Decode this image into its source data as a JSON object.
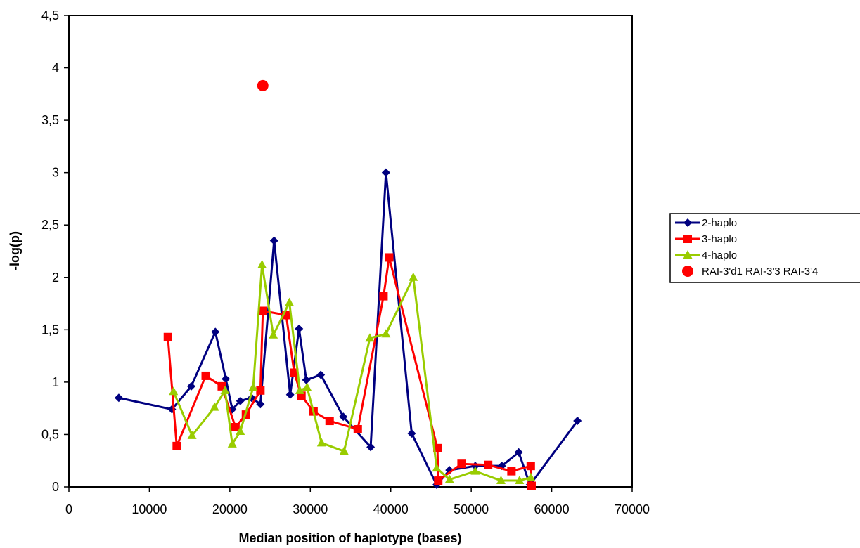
{
  "chart_data": {
    "type": "line",
    "title": "",
    "xlabel": "Median position of haplotype (bases)",
    "ylabel": "-log(p)",
    "xlim": [
      0,
      70000
    ],
    "ylim": [
      0,
      4.5
    ],
    "x_ticks": [
      0,
      10000,
      20000,
      30000,
      40000,
      50000,
      60000,
      70000
    ],
    "x_tick_labels": [
      "0",
      "10000",
      "20000",
      "30000",
      "40000",
      "50000",
      "60000",
      "70000"
    ],
    "y_ticks": [
      0,
      0.5,
      1,
      1.5,
      2,
      2.5,
      3,
      3.5,
      4,
      4.5
    ],
    "y_tick_labels": [
      "0",
      "0,5",
      "1",
      "1,5",
      "2",
      "2,5",
      "3",
      "3,5",
      "4",
      "4,5"
    ],
    "grid": false,
    "legend_position": "right",
    "series": [
      {
        "name": "2-haplo",
        "color": "#000080",
        "marker": "diamond",
        "line": true,
        "points": [
          [
            6200,
            0.85
          ],
          [
            12800,
            0.74
          ],
          [
            15200,
            0.96
          ],
          [
            18200,
            1.48
          ],
          [
            19500,
            1.03
          ],
          [
            20300,
            0.74
          ],
          [
            21300,
            0.82
          ],
          [
            22700,
            0.85
          ],
          [
            23800,
            0.79
          ],
          [
            25500,
            2.35
          ],
          [
            27500,
            0.88
          ],
          [
            28600,
            1.51
          ],
          [
            29500,
            1.02
          ],
          [
            31300,
            1.07
          ],
          [
            34100,
            0.67
          ],
          [
            37500,
            0.38
          ],
          [
            39400,
            3.0
          ],
          [
            42600,
            0.51
          ],
          [
            45700,
            0.02
          ],
          [
            47300,
            0.16
          ],
          [
            50500,
            0.2
          ],
          [
            53800,
            0.2
          ],
          [
            55900,
            0.33
          ],
          [
            57300,
            0.02
          ],
          [
            63200,
            0.63
          ]
        ]
      },
      {
        "name": "3-haplo",
        "color": "#ff0000",
        "marker": "square",
        "line": true,
        "points": [
          [
            12300,
            1.43
          ],
          [
            13400,
            0.39
          ],
          [
            17000,
            1.06
          ],
          [
            19000,
            0.96
          ],
          [
            20700,
            0.57
          ],
          [
            22000,
            0.69
          ],
          [
            23800,
            0.92
          ],
          [
            24100,
            1.68
          ],
          [
            27000,
            1.64
          ],
          [
            28000,
            1.09
          ],
          [
            28900,
            0.87
          ],
          [
            30400,
            0.72
          ],
          [
            32400,
            0.63
          ],
          [
            35900,
            0.55
          ],
          [
            39100,
            1.82
          ],
          [
            39800,
            2.19
          ],
          [
            45800,
            0.37
          ],
          [
            45900,
            0.06
          ],
          [
            48800,
            0.22
          ],
          [
            52100,
            0.21
          ],
          [
            55000,
            0.15
          ],
          [
            57400,
            0.2
          ],
          [
            57500,
            0.01
          ]
        ]
      },
      {
        "name": "4-haplo",
        "color": "#99cc00",
        "marker": "triangle",
        "line": true,
        "points": [
          [
            13000,
            0.91
          ],
          [
            15300,
            0.49
          ],
          [
            18100,
            0.76
          ],
          [
            19400,
            0.92
          ],
          [
            20300,
            0.41
          ],
          [
            21300,
            0.53
          ],
          [
            22900,
            0.95
          ],
          [
            24000,
            2.12
          ],
          [
            25400,
            1.45
          ],
          [
            27400,
            1.76
          ],
          [
            28700,
            0.92
          ],
          [
            29600,
            0.95
          ],
          [
            31400,
            0.42
          ],
          [
            34200,
            0.34
          ],
          [
            37400,
            1.42
          ],
          [
            39400,
            1.46
          ],
          [
            42800,
            2.0
          ],
          [
            45700,
            0.18
          ],
          [
            47300,
            0.07
          ],
          [
            50500,
            0.15
          ],
          [
            53700,
            0.06
          ],
          [
            56000,
            0.06
          ],
          [
            57400,
            0.09
          ]
        ]
      },
      {
        "name": "RAI-3'd1 RAI-3'3 RAI-3'4",
        "color": "#ff0000",
        "marker": "circle",
        "line": false,
        "points": [
          [
            24100,
            3.83
          ]
        ]
      }
    ]
  }
}
